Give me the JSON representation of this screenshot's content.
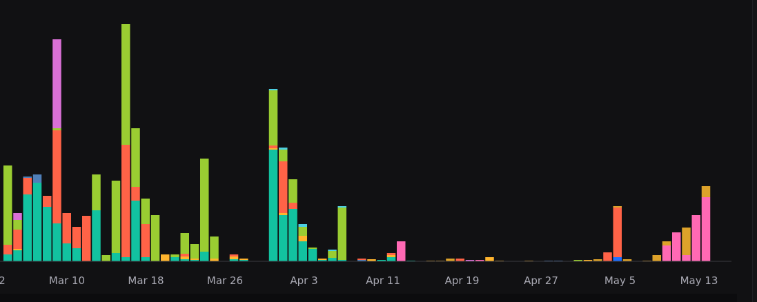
{
  "colors": {
    "background": "#111113",
    "axis_line": "#3a3a40",
    "tick_label": "#a9a9b3"
  },
  "chart_data": {
    "type": "bar",
    "stacked": true,
    "title": "",
    "xlabel": "",
    "ylabel": "",
    "ylim": [
      0,
      345
    ],
    "grid": false,
    "legend": "none",
    "x_range": [
      "2024-03-02",
      "2024-05-15"
    ],
    "x_ticks": [
      "Mar 10",
      "Mar 18",
      "Mar 26",
      "Apr 3",
      "Apr 11",
      "Apr 19",
      "Apr 27",
      "May 5",
      "May 13"
    ],
    "x_ticks_partial": [
      "2"
    ],
    "series_colors": {
      "teal": "#12c2a0",
      "lime": "#9acd32",
      "coral": "#ff6347",
      "orchid": "#da70d6",
      "steelblue": "#4f7fb8",
      "gold": "#ffb52e",
      "amber": "#dda22a",
      "cyan": "#4dd0e1",
      "pink": "#ff69b4",
      "blue": "#1e6fff"
    },
    "bars": [
      {
        "date": "2024-03-03",
        "segments": [
          {
            "s": "teal",
            "v": 10
          },
          {
            "s": "coral",
            "v": 14
          },
          {
            "s": "lime",
            "v": 115
          }
        ]
      },
      {
        "date": "2024-03-04",
        "segments": [
          {
            "s": "teal",
            "v": 16
          },
          {
            "s": "gold",
            "v": 2
          },
          {
            "s": "coral",
            "v": 28
          },
          {
            "s": "lime",
            "v": 14
          },
          {
            "s": "orchid",
            "v": 10
          }
        ]
      },
      {
        "date": "2024-03-05",
        "segments": [
          {
            "s": "teal",
            "v": 97
          },
          {
            "s": "coral",
            "v": 24
          },
          {
            "s": "steelblue",
            "v": 2
          }
        ]
      },
      {
        "date": "2024-03-06",
        "segments": [
          {
            "s": "teal",
            "v": 114
          },
          {
            "s": "steelblue",
            "v": 12
          }
        ]
      },
      {
        "date": "2024-03-07",
        "segments": [
          {
            "s": "teal",
            "v": 79
          },
          {
            "s": "coral",
            "v": 16
          }
        ]
      },
      {
        "date": "2024-03-08",
        "segments": [
          {
            "s": "teal",
            "v": 55
          },
          {
            "s": "coral",
            "v": 135
          },
          {
            "s": "lime",
            "v": 3
          },
          {
            "s": "orchid",
            "v": 129
          }
        ]
      },
      {
        "date": "2024-03-09",
        "segments": [
          {
            "s": "teal",
            "v": 26
          },
          {
            "s": "coral",
            "v": 44
          }
        ]
      },
      {
        "date": "2024-03-10",
        "segments": [
          {
            "s": "teal",
            "v": 19
          },
          {
            "s": "coral",
            "v": 31
          }
        ]
      },
      {
        "date": "2024-03-11",
        "segments": [
          {
            "s": "coral",
            "v": 66
          }
        ]
      },
      {
        "date": "2024-03-12",
        "segments": [
          {
            "s": "teal",
            "v": 74
          },
          {
            "s": "lime",
            "v": 52
          }
        ]
      },
      {
        "date": "2024-03-13",
        "segments": [
          {
            "s": "lime",
            "v": 9
          }
        ]
      },
      {
        "date": "2024-03-14",
        "segments": [
          {
            "s": "teal",
            "v": 12
          },
          {
            "s": "lime",
            "v": 105
          }
        ]
      },
      {
        "date": "2024-03-15",
        "segments": [
          {
            "s": "teal",
            "v": 6
          },
          {
            "s": "coral",
            "v": 163
          },
          {
            "s": "lime",
            "v": 175
          }
        ]
      },
      {
        "date": "2024-03-16",
        "segments": [
          {
            "s": "teal",
            "v": 88
          },
          {
            "s": "coral",
            "v": 20
          },
          {
            "s": "lime",
            "v": 85
          }
        ]
      },
      {
        "date": "2024-03-17",
        "segments": [
          {
            "s": "teal",
            "v": 6
          },
          {
            "s": "coral",
            "v": 48
          },
          {
            "s": "lime",
            "v": 37
          }
        ]
      },
      {
        "date": "2024-03-18",
        "segments": [
          {
            "s": "lime",
            "v": 67
          }
        ]
      },
      {
        "date": "2024-03-19",
        "segments": [
          {
            "s": "gold",
            "v": 10
          }
        ]
      },
      {
        "date": "2024-03-20",
        "segments": [
          {
            "s": "teal",
            "v": 6
          },
          {
            "s": "lime",
            "v": 4
          }
        ]
      },
      {
        "date": "2024-03-21",
        "segments": [
          {
            "s": "teal",
            "v": 3
          },
          {
            "s": "gold",
            "v": 4
          },
          {
            "s": "coral",
            "v": 4
          },
          {
            "s": "lime",
            "v": 30
          }
        ]
      },
      {
        "date": "2024-03-22",
        "segments": [
          {
            "s": "teal",
            "v": 2
          },
          {
            "s": "gold",
            "v": 2
          },
          {
            "s": "lime",
            "v": 21
          }
        ]
      },
      {
        "date": "2024-03-23",
        "segments": [
          {
            "s": "teal",
            "v": 14
          },
          {
            "s": "lime",
            "v": 135
          }
        ]
      },
      {
        "date": "2024-03-24",
        "segments": [
          {
            "s": "gold",
            "v": 4
          },
          {
            "s": "lime",
            "v": 32
          }
        ]
      },
      {
        "date": "2024-03-26",
        "segments": [
          {
            "s": "teal",
            "v": 3
          },
          {
            "s": "gold",
            "v": 4
          },
          {
            "s": "coral",
            "v": 3
          }
        ]
      },
      {
        "date": "2024-03-27",
        "segments": [
          {
            "s": "teal",
            "v": 2
          },
          {
            "s": "gold",
            "v": 2
          }
        ]
      },
      {
        "date": "2024-03-30",
        "segments": [
          {
            "s": "teal",
            "v": 162
          },
          {
            "s": "gold",
            "v": 2
          },
          {
            "s": "coral",
            "v": 4
          },
          {
            "s": "lime",
            "v": 80
          },
          {
            "s": "cyan",
            "v": 2
          }
        ]
      },
      {
        "date": "2024-03-31",
        "segments": [
          {
            "s": "teal",
            "v": 67
          },
          {
            "s": "gold",
            "v": 3
          },
          {
            "s": "coral",
            "v": 75
          },
          {
            "s": "lime",
            "v": 17
          },
          {
            "s": "cyan",
            "v": 3
          }
        ]
      },
      {
        "date": "2024-04-01",
        "segments": [
          {
            "s": "teal",
            "v": 76
          },
          {
            "s": "coral",
            "v": 9
          },
          {
            "s": "lime",
            "v": 34
          }
        ]
      },
      {
        "date": "2024-04-02",
        "segments": [
          {
            "s": "teal",
            "v": 29
          },
          {
            "s": "gold",
            "v": 8
          },
          {
            "s": "lime",
            "v": 13
          },
          {
            "s": "cyan",
            "v": 4
          }
        ]
      },
      {
        "date": "2024-04-03",
        "segments": [
          {
            "s": "teal",
            "v": 18
          },
          {
            "s": "lime",
            "v": 2
          }
        ]
      },
      {
        "date": "2024-04-04",
        "segments": [
          {
            "s": "teal",
            "v": 2
          },
          {
            "s": "gold",
            "v": 2
          }
        ]
      },
      {
        "date": "2024-04-05",
        "segments": [
          {
            "s": "teal",
            "v": 5
          },
          {
            "s": "lime",
            "v": 10
          },
          {
            "s": "cyan",
            "v": 2
          }
        ]
      },
      {
        "date": "2024-04-06",
        "segments": [
          {
            "s": "teal",
            "v": 2
          },
          {
            "s": "lime",
            "v": 76
          },
          {
            "s": "cyan",
            "v": 2
          }
        ]
      },
      {
        "date": "2024-04-08",
        "segments": [
          {
            "s": "steelblue",
            "v": 2
          },
          {
            "s": "coral",
            "v": 2
          }
        ]
      },
      {
        "date": "2024-04-09",
        "segments": [
          {
            "s": "gold",
            "v": 3
          }
        ]
      },
      {
        "date": "2024-04-10",
        "segments": [
          {
            "s": "teal",
            "v": 2
          }
        ]
      },
      {
        "date": "2024-04-11",
        "segments": [
          {
            "s": "teal",
            "v": 6
          },
          {
            "s": "gold",
            "v": 3
          },
          {
            "s": "coral",
            "v": 3
          }
        ]
      },
      {
        "date": "2024-04-12",
        "segments": [
          {
            "s": "pink",
            "v": 29
          }
        ]
      },
      {
        "date": "2024-04-13",
        "segments": [
          {
            "s": "teal",
            "v": 1
          }
        ]
      },
      {
        "date": "2024-04-15",
        "segments": [
          {
            "s": "amber",
            "v": 1
          }
        ]
      },
      {
        "date": "2024-04-16",
        "segments": [
          {
            "s": "amber",
            "v": 1
          }
        ]
      },
      {
        "date": "2024-04-17",
        "segments": [
          {
            "s": "amber",
            "v": 4
          }
        ]
      },
      {
        "date": "2024-04-18",
        "segments": [
          {
            "s": "coral",
            "v": 4
          }
        ]
      },
      {
        "date": "2024-04-19",
        "segments": [
          {
            "s": "orchid",
            "v": 2
          }
        ]
      },
      {
        "date": "2024-04-20",
        "segments": [
          {
            "s": "pink",
            "v": 2
          }
        ]
      },
      {
        "date": "2024-04-21",
        "segments": [
          {
            "s": "gold",
            "v": 6
          }
        ]
      },
      {
        "date": "2024-04-22",
        "segments": [
          {
            "s": "amber",
            "v": 1
          }
        ]
      },
      {
        "date": "2024-04-25",
        "segments": [
          {
            "s": "amber",
            "v": 1
          }
        ]
      },
      {
        "date": "2024-04-27",
        "segments": [
          {
            "s": "steelblue",
            "v": 1
          }
        ]
      },
      {
        "date": "2024-04-28",
        "segments": [
          {
            "s": "steelblue",
            "v": 1
          }
        ]
      },
      {
        "date": "2024-04-30",
        "segments": [
          {
            "s": "lime",
            "v": 2
          }
        ]
      },
      {
        "date": "2024-05-01",
        "segments": [
          {
            "s": "gold",
            "v": 2
          }
        ]
      },
      {
        "date": "2024-05-02",
        "segments": [
          {
            "s": "amber",
            "v": 3
          }
        ]
      },
      {
        "date": "2024-05-03",
        "segments": [
          {
            "s": "coral",
            "v": 13
          }
        ]
      },
      {
        "date": "2024-05-04",
        "segments": [
          {
            "s": "blue",
            "v": 6
          },
          {
            "s": "coral",
            "v": 72
          },
          {
            "s": "amber",
            "v": 2
          }
        ]
      },
      {
        "date": "2024-05-05",
        "segments": [
          {
            "s": "amber",
            "v": 3
          }
        ]
      },
      {
        "date": "2024-05-07",
        "segments": [
          {
            "s": "amber",
            "v": 1
          }
        ]
      },
      {
        "date": "2024-05-08",
        "segments": [
          {
            "s": "amber",
            "v": 9
          }
        ]
      },
      {
        "date": "2024-05-09",
        "segments": [
          {
            "s": "pink",
            "v": 23
          },
          {
            "s": "amber",
            "v": 6
          }
        ]
      },
      {
        "date": "2024-05-10",
        "segments": [
          {
            "s": "pink",
            "v": 42
          }
        ]
      },
      {
        "date": "2024-05-11",
        "segments": [
          {
            "s": "pink",
            "v": 9
          },
          {
            "s": "amber",
            "v": 40
          }
        ]
      },
      {
        "date": "2024-05-12",
        "segments": [
          {
            "s": "pink",
            "v": 67
          }
        ]
      },
      {
        "date": "2024-05-13",
        "segments": [
          {
            "s": "pink",
            "v": 93
          },
          {
            "s": "amber",
            "v": 16
          }
        ]
      }
    ]
  }
}
